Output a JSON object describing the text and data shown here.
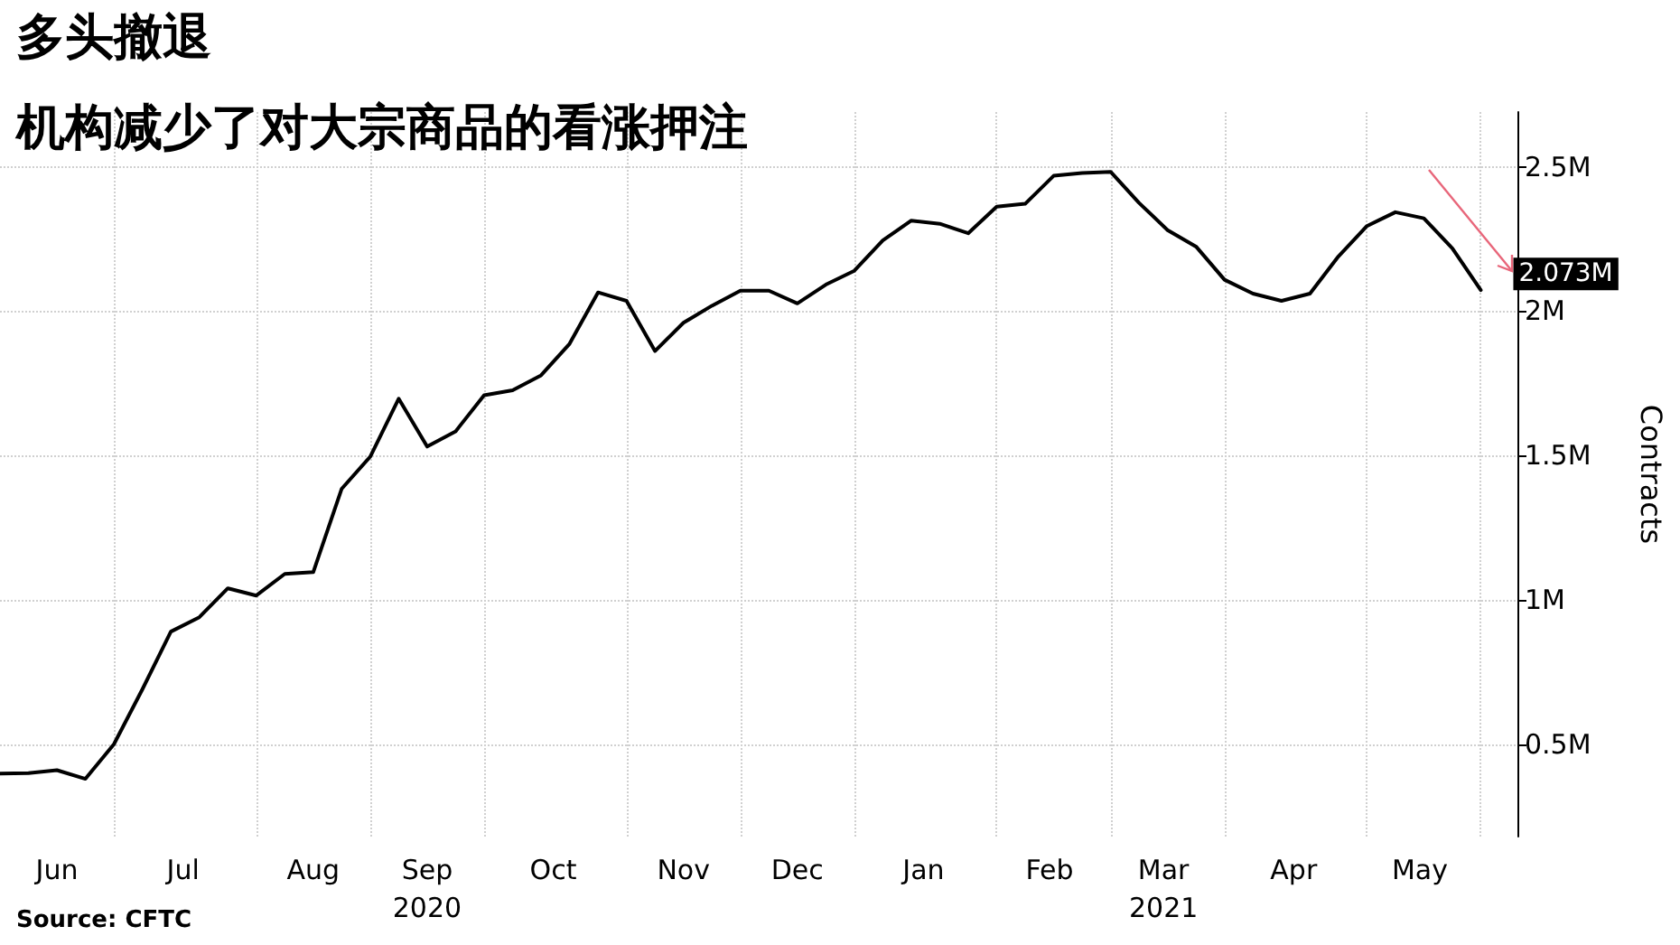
{
  "chart_data": {
    "type": "line",
    "title": "多头撤退",
    "subtitle": "机构减少了对大宗商品的看涨押注",
    "ylabel": "Contracts",
    "x": [
      "2020-06-05",
      "2020-06-12",
      "2020-06-19",
      "2020-06-26",
      "2020-07-03",
      "2020-07-10",
      "2020-07-17",
      "2020-07-24",
      "2020-07-31",
      "2020-08-07",
      "2020-08-14",
      "2020-08-21",
      "2020-08-28",
      "2020-09-04",
      "2020-09-11",
      "2020-09-18",
      "2020-09-25",
      "2020-10-02",
      "2020-10-09",
      "2020-10-16",
      "2020-10-23",
      "2020-10-30",
      "2020-11-06",
      "2020-11-13",
      "2020-11-20",
      "2020-11-27",
      "2020-12-04",
      "2020-12-11",
      "2020-12-18",
      "2020-12-25",
      "2021-01-01",
      "2021-01-08",
      "2021-01-15",
      "2021-01-22",
      "2021-01-29",
      "2021-02-05",
      "2021-02-12",
      "2021-02-19",
      "2021-02-26",
      "2021-03-05",
      "2021-03-12",
      "2021-03-19",
      "2021-03-26",
      "2021-04-02",
      "2021-04-09",
      "2021-04-16",
      "2021-04-23",
      "2021-04-30",
      "2021-05-07",
      "2021-05-14",
      "2021-05-21",
      "2021-05-28",
      "2021-06-04"
    ],
    "series": [
      {
        "color": "#000000",
        "values": [
          0.398,
          0.4,
          0.41,
          0.38,
          0.5,
          0.69,
          0.89,
          0.94,
          1.04,
          1.015,
          1.09,
          1.096,
          1.385,
          1.496,
          1.697,
          1.531,
          1.584,
          1.709,
          1.726,
          1.778,
          1.887,
          2.065,
          2.036,
          1.862,
          1.96,
          2.019,
          2.071,
          2.071,
          2.027,
          2.092,
          2.14,
          2.245,
          2.314,
          2.303,
          2.27,
          2.362,
          2.372,
          2.469,
          2.479,
          2.483,
          2.375,
          2.281,
          2.224,
          2.109,
          2.061,
          2.036,
          2.061,
          2.19,
          2.295,
          2.343,
          2.322,
          2.218,
          2.073
        ],
        "value_labels": [
          null,
          null,
          null,
          null,
          null,
          null,
          null,
          null,
          null,
          null,
          null,
          null,
          null,
          null,
          null,
          null,
          null,
          null,
          null,
          null,
          null,
          null,
          null,
          null,
          null,
          null,
          null,
          null,
          null,
          null,
          null,
          null,
          null,
          null,
          null,
          null,
          null,
          null,
          null,
          null,
          null,
          null,
          null,
          null,
          null,
          null,
          null,
          null,
          null,
          null,
          null,
          null,
          "2.073M"
        ]
      }
    ],
    "xlim": [
      "2020-06-05",
      "2021-06-13"
    ],
    "xticks": [
      {
        "value": "2020-07-03",
        "label": null
      },
      {
        "value": "2020-08-07",
        "label": null
      },
      {
        "value": "2020-09-04",
        "label": null
      },
      {
        "value": "2020-10-02",
        "label": null
      },
      {
        "value": "2020-11-06",
        "label": null
      },
      {
        "value": "2020-12-04",
        "label": null
      },
      {
        "value": "2021-01-01",
        "label": null
      },
      {
        "value": "2021-02-05",
        "label": null
      },
      {
        "value": "2021-03-05",
        "label": null
      },
      {
        "value": "2021-04-02",
        "label": null
      },
      {
        "value": "2021-05-07",
        "label": null
      },
      {
        "value": "2021-06-04",
        "label": null
      },
      {
        "value": "2020-06-19",
        "label": "Jun"
      },
      {
        "value": "2020-07-20",
        "label": "Jul"
      },
      {
        "value": "2020-08-21",
        "label": "Aug"
      },
      {
        "value": "2020-09-18",
        "label": "Sep\n2020"
      },
      {
        "value": "2020-10-19",
        "label": "Oct"
      },
      {
        "value": "2020-11-20",
        "label": "Nov"
      },
      {
        "value": "2020-12-18",
        "label": "Dec"
      },
      {
        "value": "2021-01-18",
        "label": "Jan"
      },
      {
        "value": "2021-02-18",
        "label": "Feb"
      },
      {
        "value": "2021-03-18",
        "label": "Mar\n2021"
      },
      {
        "value": "2021-04-19",
        "label": "Apr"
      },
      {
        "value": "2021-05-20",
        "label": "May"
      }
    ],
    "ylim": [
      0.18,
      2.69
    ],
    "yticks": [
      {
        "value": 0.5,
        "label": "0.5M"
      },
      {
        "value": 1,
        "label": "1M"
      },
      {
        "value": 1.5,
        "label": "1.5M"
      },
      {
        "value": 2,
        "label": "2M"
      },
      {
        "value": 2.5,
        "label": "2.5M"
      }
    ],
    "grid": true,
    "marker": "none",
    "line_style": "solid",
    "annotations": [
      "Source: CFTC"
    ]
  }
}
